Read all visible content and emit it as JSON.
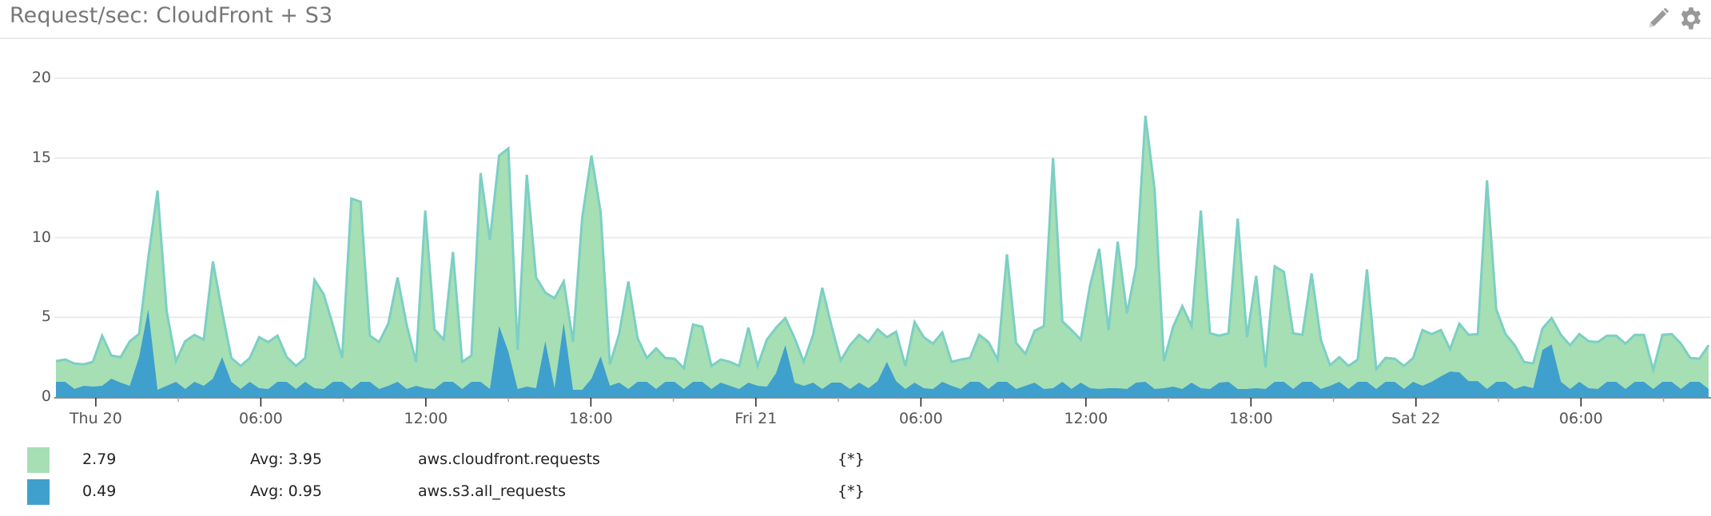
{
  "header": {
    "title": "Request/sec: CloudFront + S3",
    "edit_icon": "pencil-icon",
    "settings_icon": "gear-icon"
  },
  "colors": {
    "cloudfront_fill": "#a6dfb4",
    "cloudfront_line": "#7ccfc4",
    "s3_fill": "#3fa0cd",
    "gridline": "#ececec",
    "axis": "#888888",
    "text": "#555555"
  },
  "legend": [
    {
      "color": "#a6dfb4",
      "value": "2.79",
      "avg": "Avg: 3.95",
      "metric": "aws.cloudfront.requests",
      "scope": "{*}"
    },
    {
      "color": "#3fa0cd",
      "value": "0.49",
      "avg": "Avg: 0.95",
      "metric": "aws.s3.all_requests",
      "scope": "{*}"
    }
  ],
  "chart_data": {
    "type": "area",
    "title": "Request/sec: CloudFront + S3",
    "xlabel": "",
    "ylabel": "",
    "ylim": [
      0,
      20
    ],
    "yticks": [
      0,
      5,
      10,
      15,
      20
    ],
    "grid": true,
    "legend_position": "bottom",
    "x_unit": "hours since Thu 20 00:00",
    "x_start": -1.45,
    "x_step": 0.3357,
    "xlim": [
      -1.45,
      58.64
    ],
    "xticks": [
      {
        "hour": 0,
        "label": "Thu 20"
      },
      {
        "hour": 6,
        "label": "06:00"
      },
      {
        "hour": 12,
        "label": "12:00"
      },
      {
        "hour": 18,
        "label": "18:00"
      },
      {
        "hour": 24,
        "label": "Fri 21"
      },
      {
        "hour": 30,
        "label": "06:00"
      },
      {
        "hour": 36,
        "label": "12:00"
      },
      {
        "hour": 42,
        "label": "18:00"
      },
      {
        "hour": 48,
        "label": "Sat 22"
      },
      {
        "hour": 54,
        "label": "06:00"
      }
    ],
    "series": [
      {
        "name": "aws.cloudfront.requests",
        "scope": "{*}",
        "last": 2.79,
        "avg": 3.95,
        "color": "#a6dfb4",
        "values": [
          2.25,
          2.35,
          2.1,
          2.05,
          2.2,
          3.85,
          2.6,
          2.5,
          3.5,
          3.95,
          8.7,
          12.95,
          5.35,
          2.25,
          3.5,
          3.9,
          3.6,
          8.5,
          5.35,
          2.45,
          1.95,
          2.45,
          3.75,
          3.45,
          3.85,
          2.5,
          1.95,
          2.45,
          7.35,
          6.45,
          4.5,
          2.45,
          12.45,
          12.25,
          3.85,
          3.45,
          4.6,
          7.5,
          4.5,
          2.2,
          11.7,
          4.25,
          3.6,
          9.1,
          2.2,
          2.6,
          14.05,
          9.85,
          15.15,
          15.6,
          2.95,
          13.95,
          7.5,
          6.55,
          6.2,
          7.25,
          3.45,
          11.25,
          15.15,
          11.6,
          2.05,
          3.95,
          7.25,
          3.7,
          2.45,
          3.05,
          2.45,
          2.4,
          1.8,
          4.55,
          4.4,
          1.95,
          2.35,
          2.2,
          1.95,
          4.35,
          1.95,
          3.6,
          4.35,
          4.95,
          3.7,
          2.2,
          3.9,
          6.85,
          4.45,
          2.3,
          3.25,
          3.9,
          3.45,
          4.25,
          3.75,
          4.1,
          1.95,
          4.7,
          3.75,
          3.35,
          4.05,
          2.2,
          2.35,
          2.45,
          3.9,
          3.45,
          2.35,
          8.95,
          3.4,
          2.7,
          4.15,
          4.45,
          15.0,
          4.75,
          4.2,
          3.6,
          7.0,
          9.3,
          4.2,
          9.75,
          5.25,
          8.2,
          17.65,
          13.0,
          2.25,
          4.4,
          5.7,
          4.45,
          11.7,
          4.0,
          3.85,
          4.0,
          11.2,
          3.75,
          7.6,
          1.85,
          8.2,
          7.85,
          4.0,
          3.9,
          7.75,
          3.6,
          2.0,
          2.5,
          1.95,
          2.35,
          8.0,
          1.75,
          2.45,
          2.4,
          1.95,
          2.45,
          4.2,
          3.95,
          4.2,
          3.0,
          4.6,
          3.9,
          3.95,
          13.6,
          5.5,
          3.95,
          3.25,
          2.2,
          2.1,
          4.3,
          4.95,
          3.9,
          3.25,
          3.95,
          3.5,
          3.45,
          3.85,
          3.85,
          3.35,
          3.9,
          3.9,
          1.7,
          3.9,
          3.95,
          3.35,
          2.45,
          2.4,
          3.25
        ]
      },
      {
        "name": "aws.s3.all_requests",
        "scope": "{*}",
        "last": 0.49,
        "avg": 0.95,
        "color": "#3fa0cd",
        "values": [
          0.95,
          0.95,
          0.5,
          0.7,
          0.65,
          0.7,
          1.15,
          0.9,
          0.7,
          2.5,
          5.5,
          0.45,
          0.7,
          0.95,
          0.5,
          0.95,
          0.7,
          1.15,
          2.5,
          0.95,
          0.5,
          0.95,
          0.55,
          0.5,
          0.95,
          0.95,
          0.5,
          0.95,
          0.55,
          0.5,
          0.95,
          0.95,
          0.5,
          0.95,
          0.95,
          0.5,
          0.7,
          0.95,
          0.5,
          0.7,
          0.55,
          0.5,
          0.95,
          0.95,
          0.5,
          0.95,
          0.95,
          0.5,
          4.45,
          2.85,
          0.5,
          0.65,
          0.55,
          3.5,
          0.55,
          4.65,
          0.45,
          0.45,
          1.15,
          2.55,
          0.7,
          0.9,
          0.5,
          0.95,
          0.95,
          0.5,
          0.95,
          0.95,
          0.5,
          0.95,
          0.95,
          0.5,
          0.9,
          0.7,
          0.5,
          0.9,
          0.7,
          0.65,
          1.5,
          3.25,
          0.9,
          0.7,
          0.9,
          0.5,
          0.9,
          0.9,
          0.5,
          0.9,
          0.55,
          1.0,
          2.2,
          1.0,
          0.5,
          0.9,
          0.55,
          0.5,
          0.95,
          0.7,
          0.5,
          0.95,
          0.95,
          0.5,
          0.95,
          0.95,
          0.5,
          0.7,
          0.9,
          0.5,
          0.55,
          0.95,
          0.5,
          0.9,
          0.55,
          0.5,
          0.55,
          0.55,
          0.5,
          0.9,
          0.95,
          0.5,
          0.55,
          0.65,
          0.5,
          0.9,
          0.55,
          0.5,
          0.9,
          0.95,
          0.5,
          0.5,
          0.55,
          0.5,
          0.95,
          0.95,
          0.5,
          0.95,
          0.95,
          0.5,
          0.7,
          0.95,
          0.5,
          0.95,
          0.95,
          0.5,
          0.95,
          0.95,
          0.5,
          0.95,
          0.7,
          0.95,
          1.3,
          1.6,
          1.55,
          1.0,
          1.0,
          0.5,
          0.95,
          0.95,
          0.5,
          0.7,
          0.55,
          2.95,
          3.3,
          0.95,
          0.5,
          0.95,
          0.55,
          0.5,
          0.95,
          0.95,
          0.5,
          0.95,
          0.95,
          0.5,
          0.95,
          0.95,
          0.5,
          0.95,
          0.95,
          0.5
        ]
      }
    ]
  }
}
